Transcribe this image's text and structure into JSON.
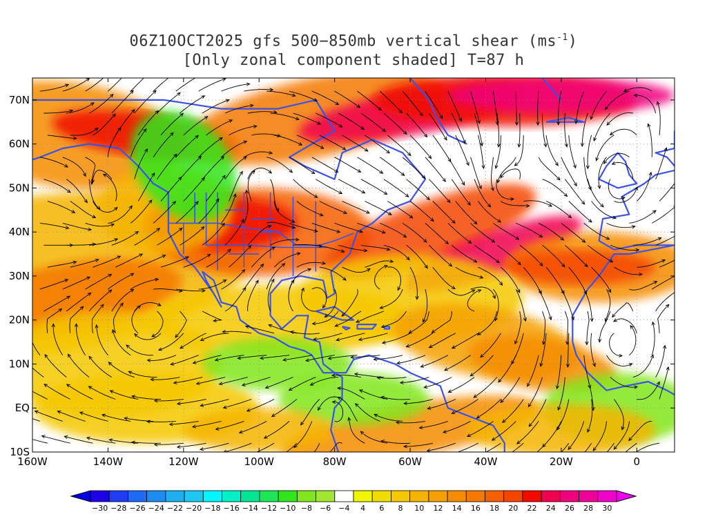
{
  "title": {
    "line1_prefix": "06Z10OCT2025 gfs 500−850mb vertical shear (ms",
    "line1_sup": "-1",
    "line1_suffix": ")",
    "line2": "[Only zonal component shaded] T=87 h"
  },
  "map": {
    "lon_range": [
      -160,
      10
    ],
    "lat_range": [
      -10,
      75
    ],
    "lat_labels": [
      "70N",
      "60N",
      "50N",
      "40N",
      "30N",
      "20N",
      "10N",
      "EQ",
      "10S"
    ],
    "lat_values": [
      70,
      60,
      50,
      40,
      30,
      20,
      10,
      0,
      -10
    ],
    "lon_labels": [
      "160W",
      "140W",
      "120W",
      "100W",
      "80W",
      "60W",
      "40W",
      "20W",
      "0"
    ],
    "lon_values": [
      -160,
      -140,
      -120,
      -100,
      -80,
      -60,
      -40,
      -20,
      0
    ],
    "coastline_color": "#3a52e8",
    "streamline_color": "#000000",
    "grid_line_style": "dotted"
  },
  "colorbar": {
    "labels": [
      "−30",
      "−28",
      "−26",
      "−24",
      "−22",
      "−20",
      "−18",
      "−16",
      "−14",
      "−12",
      "−10",
      "−8",
      "−6",
      "−4",
      "4",
      "6",
      "8",
      "10",
      "12",
      "14",
      "16",
      "18",
      "20",
      "22",
      "24",
      "26",
      "28",
      "30"
    ],
    "colors": [
      "#1e00e6",
      "#1f3cf5",
      "#1e6af5",
      "#1e8cf0",
      "#1eaff0",
      "#1ec8f0",
      "#00f5ff",
      "#00f0c8",
      "#00e696",
      "#1ee65a",
      "#32e61e",
      "#82e61e",
      "#a0e632",
      "#ffffff",
      "#f0f500",
      "#f0dc00",
      "#f5c800",
      "#f5b400",
      "#f5a000",
      "#f58c00",
      "#f57800",
      "#f55f00",
      "#f54600",
      "#f00a00",
      "#f00050",
      "#f0007d",
      "#f0009b",
      "#f000c8"
    ],
    "under_color": "#0000e6",
    "over_color": "#f000f0"
  }
}
